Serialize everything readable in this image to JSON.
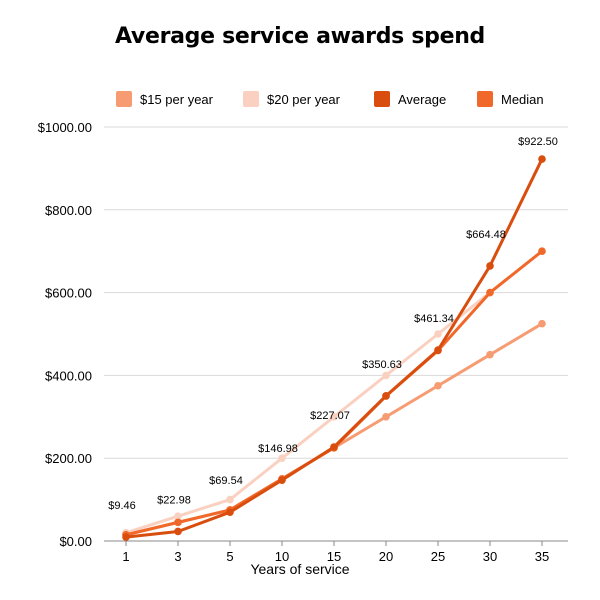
{
  "chart_data": {
    "type": "line",
    "title": "Average service awards spend",
    "xlabel": "Years of service",
    "ylabel": "",
    "categories": [
      "1",
      "3",
      "5",
      "10",
      "15",
      "20",
      "25",
      "30",
      "35"
    ],
    "ylim": [
      0,
      1000
    ],
    "yticks": [
      "$0.00",
      "$200.00",
      "$400.00",
      "$600.00",
      "$800.00",
      "$1000.00"
    ],
    "grid": true,
    "legend_position": "top",
    "series": [
      {
        "name": "$15 per year",
        "color": "#F79C72",
        "values": [
          15,
          45,
          75,
          150,
          225,
          300,
          375,
          450,
          525
        ]
      },
      {
        "name": "$20 per year",
        "color": "#FAD1C0",
        "values": [
          20,
          60,
          100,
          200,
          300,
          400,
          500,
          600,
          700
        ]
      },
      {
        "name": "Average",
        "color": "#D94E0F",
        "values": [
          9.46,
          22.98,
          69.54,
          146.98,
          227.07,
          350.63,
          461.34,
          664.48,
          922.5
        ]
      },
      {
        "name": "Median",
        "color": "#F0692A",
        "values": [
          15,
          45,
          75,
          150,
          225,
          350,
          460,
          600,
          700
        ]
      }
    ],
    "data_labels": [
      "$9.46",
      "$22.98",
      "$69.54",
      "$146.98",
      "$227.07",
      "$350.63",
      "$461.34",
      "$664.48",
      "$922.50"
    ]
  }
}
